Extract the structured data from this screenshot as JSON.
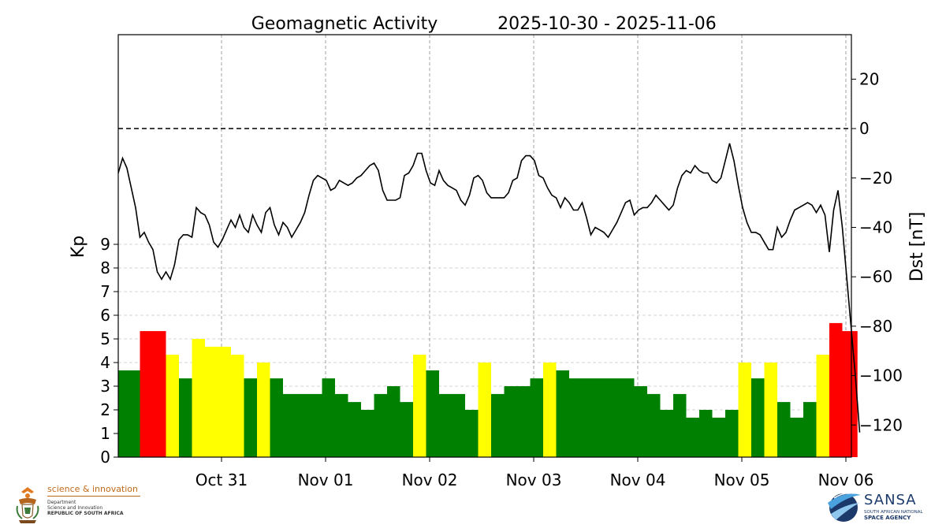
{
  "chart_data": {
    "type": "bar+line",
    "title": "Geomagnetic Activity",
    "date_range": "2025-10-30 - 2025-11-06",
    "ylabel_left": "Kp",
    "ylabel_right": "Dst [nT]",
    "x_ticks": [
      "Oct 31",
      "Nov 01",
      "Nov 02",
      "Nov 03",
      "Nov 04",
      "Nov 05",
      "Nov 06"
    ],
    "left_ticks": [
      "0",
      "1",
      "2",
      "3",
      "4",
      "5",
      "6",
      "7",
      "8",
      "9"
    ],
    "right_ticks": [
      "20",
      "0",
      "−20",
      "−40",
      "−60",
      "−80",
      "−100",
      "−120"
    ],
    "kp_ylim": [
      0,
      9
    ],
    "dst_ylim": [
      -133,
      38
    ],
    "grid": true,
    "kp_colors": {
      "quiet": "#008000",
      "active": "#ffff00",
      "storm": "#ff0000"
    },
    "kp_series": [
      {
        "start": "2025-10-30 00:00",
        "hours": 5,
        "value": 3.67,
        "level": "quiet"
      },
      {
        "start": "2025-10-30 05:00",
        "hours": 6,
        "value": 5.33,
        "level": "storm"
      },
      {
        "start": "2025-10-30 11:00",
        "hours": 3,
        "value": 4.33,
        "level": "active"
      },
      {
        "start": "2025-10-30 14:00",
        "hours": 3,
        "value": 3.33,
        "level": "quiet"
      },
      {
        "start": "2025-10-30 17:00",
        "hours": 3,
        "value": 5.0,
        "level": "active"
      },
      {
        "start": "2025-10-30 20:00",
        "hours": 6,
        "value": 4.67,
        "level": "active"
      },
      {
        "start": "2025-10-31 02:00",
        "hours": 3,
        "value": 4.33,
        "level": "active"
      },
      {
        "start": "2025-10-31 05:00",
        "hours": 3,
        "value": 3.33,
        "level": "quiet"
      },
      {
        "start": "2025-10-31 08:00",
        "hours": 3,
        "value": 4.0,
        "level": "active"
      },
      {
        "start": "2025-10-31 11:00",
        "hours": 3,
        "value": 3.33,
        "level": "quiet"
      },
      {
        "start": "2025-10-31 14:00",
        "hours": 9,
        "value": 2.67,
        "level": "quiet"
      },
      {
        "start": "2025-10-31 23:00",
        "hours": 3,
        "value": 3.33,
        "level": "quiet"
      },
      {
        "start": "2025-11-01 02:00",
        "hours": 3,
        "value": 2.67,
        "level": "quiet"
      },
      {
        "start": "2025-11-01 05:00",
        "hours": 3,
        "value": 2.33,
        "level": "quiet"
      },
      {
        "start": "2025-11-01 08:00",
        "hours": 3,
        "value": 2.0,
        "level": "quiet"
      },
      {
        "start": "2025-11-01 11:00",
        "hours": 3,
        "value": 2.67,
        "level": "quiet"
      },
      {
        "start": "2025-11-01 14:00",
        "hours": 3,
        "value": 3.0,
        "level": "quiet"
      },
      {
        "start": "2025-11-01 17:00",
        "hours": 3,
        "value": 2.33,
        "level": "quiet"
      },
      {
        "start": "2025-11-01 20:00",
        "hours": 3,
        "value": 4.33,
        "level": "active"
      },
      {
        "start": "2025-11-01 23:00",
        "hours": 3,
        "value": 3.67,
        "level": "quiet"
      },
      {
        "start": "2025-11-02 02:00",
        "hours": 6,
        "value": 2.67,
        "level": "quiet"
      },
      {
        "start": "2025-11-02 08:00",
        "hours": 3,
        "value": 2.0,
        "level": "quiet"
      },
      {
        "start": "2025-11-02 11:00",
        "hours": 3,
        "value": 4.0,
        "level": "active"
      },
      {
        "start": "2025-11-02 14:00",
        "hours": 3,
        "value": 2.67,
        "level": "quiet"
      },
      {
        "start": "2025-11-02 17:00",
        "hours": 6,
        "value": 3.0,
        "level": "quiet"
      },
      {
        "start": "2025-11-02 23:00",
        "hours": 3,
        "value": 3.33,
        "level": "quiet"
      },
      {
        "start": "2025-11-03 02:00",
        "hours": 3,
        "value": 4.0,
        "level": "active"
      },
      {
        "start": "2025-11-03 05:00",
        "hours": 3,
        "value": 3.67,
        "level": "quiet"
      },
      {
        "start": "2025-11-03 08:00",
        "hours": 15,
        "value": 3.33,
        "level": "quiet"
      },
      {
        "start": "2025-11-03 23:00",
        "hours": 3,
        "value": 3.0,
        "level": "quiet"
      },
      {
        "start": "2025-11-04 02:00",
        "hours": 3,
        "value": 2.67,
        "level": "quiet"
      },
      {
        "start": "2025-11-04 05:00",
        "hours": 3,
        "value": 2.0,
        "level": "quiet"
      },
      {
        "start": "2025-11-04 08:00",
        "hours": 3,
        "value": 2.67,
        "level": "quiet"
      },
      {
        "start": "2025-11-04 11:00",
        "hours": 3,
        "value": 1.67,
        "level": "quiet"
      },
      {
        "start": "2025-11-04 14:00",
        "hours": 3,
        "value": 2.0,
        "level": "quiet"
      },
      {
        "start": "2025-11-04 17:00",
        "hours": 3,
        "value": 1.67,
        "level": "quiet"
      },
      {
        "start": "2025-11-04 20:00",
        "hours": 3,
        "value": 2.0,
        "level": "quiet"
      },
      {
        "start": "2025-11-04 23:00",
        "hours": 3,
        "value": 4.0,
        "level": "active"
      },
      {
        "start": "2025-11-05 02:00",
        "hours": 3,
        "value": 3.33,
        "level": "quiet"
      },
      {
        "start": "2025-11-05 05:00",
        "hours": 3,
        "value": 4.0,
        "level": "active"
      },
      {
        "start": "2025-11-05 08:00",
        "hours": 3,
        "value": 2.33,
        "level": "quiet"
      },
      {
        "start": "2025-11-05 11:00",
        "hours": 3,
        "value": 1.67,
        "level": "quiet"
      },
      {
        "start": "2025-11-05 14:00",
        "hours": 3,
        "value": 2.33,
        "level": "quiet"
      },
      {
        "start": "2025-11-05 17:00",
        "hours": 3,
        "value": 4.33,
        "level": "active"
      },
      {
        "start": "2025-11-05 20:00",
        "hours": 3,
        "value": 5.67,
        "level": "storm"
      },
      {
        "start": "2025-11-05 23:00",
        "hours": 3.5,
        "value": 5.33,
        "level": "storm"
      }
    ],
    "dst_series": {
      "start": "2025-10-30 00:00",
      "step_hours": 1,
      "values": [
        -18,
        -12,
        -16,
        -24,
        -32,
        -44,
        -42,
        -46,
        -49,
        -58,
        -61,
        -58,
        -61,
        -55,
        -45,
        -43,
        -43,
        -44,
        -32,
        -34,
        -35,
        -39,
        -46,
        -48,
        -45,
        -41,
        -37,
        -40,
        -35,
        -40,
        -42,
        -35,
        -39,
        -42,
        -34,
        -32,
        -39,
        -43,
        -38,
        -40,
        -44,
        -41,
        -38,
        -34,
        -27,
        -21,
        -19,
        -20,
        -21,
        -25,
        -24,
        -21,
        -22,
        -23,
        -22,
        -20,
        -19,
        -17,
        -15,
        -14,
        -17,
        -25,
        -29,
        -29,
        -29,
        -28,
        -19,
        -18,
        -15,
        -10,
        -10,
        -17,
        -22,
        -23,
        -17,
        -21,
        -23,
        -24,
        -25,
        -29,
        -31,
        -27,
        -20,
        -19,
        -21,
        -26,
        -28,
        -28,
        -28,
        -28,
        -26,
        -21,
        -20,
        -13,
        -11,
        -11,
        -13,
        -19,
        -20,
        -24,
        -27,
        -28,
        -32,
        -28,
        -30,
        -33,
        -33,
        -30,
        -36,
        -43,
        -40,
        -41,
        -42,
        -44,
        -41,
        -38,
        -34,
        -30,
        -29,
        -35,
        -33,
        -32,
        -32,
        -30,
        -27,
        -29,
        -31,
        -33,
        -31,
        -24,
        -19,
        -17,
        -18,
        -15,
        -17,
        -18,
        -18,
        -21,
        -22,
        -20,
        -13,
        -6,
        -13,
        -23,
        -32,
        -38,
        -42,
        -42,
        -43,
        -46,
        -49,
        -49,
        -40,
        -44,
        -42,
        -37,
        -33,
        -32,
        -31,
        -30,
        -31,
        -34,
        -31,
        -35,
        -50,
        -33,
        -25,
        -40,
        -60,
        -80,
        -100,
        -123
      ]
    }
  },
  "logos": {
    "left": {
      "title": "science & innovation",
      "sub_lines": [
        "Department",
        "Science and Innovation"
      ],
      "bold_line": "REPUBLIC OF SOUTH AFRICA",
      "emblem_icon": "coat-of-arms-icon"
    },
    "right": {
      "name": "SANSA",
      "sub_line": "SOUTH AFRICAN NATIONAL",
      "bold_line": "SPACE AGENCY",
      "swoosh_icon": "sansa-swoosh-icon"
    }
  }
}
